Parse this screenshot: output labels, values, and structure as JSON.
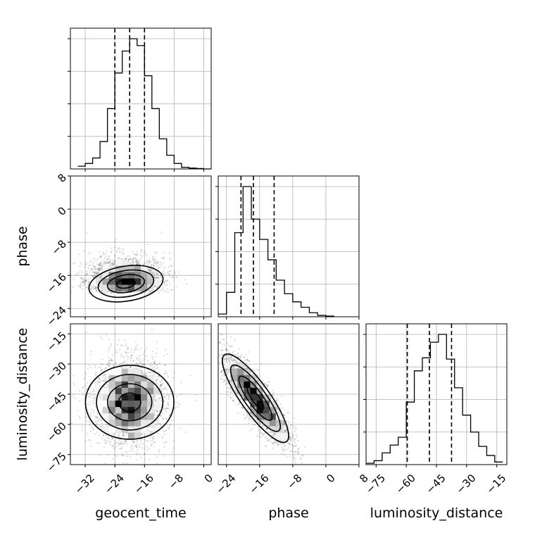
{
  "chart_data": {
    "type": "corner",
    "parameters": [
      "geocent_time",
      "phase",
      "luminosity_distance"
    ],
    "axis_labels": {
      "x": [
        "geocent_time",
        "phase",
        "luminosity_distance"
      ],
      "y": [
        "phase",
        "luminosity_distance"
      ]
    },
    "ranges": {
      "geocent_time": [
        -36,
        2
      ],
      "phase": [
        -26,
        8
      ],
      "luminosity_distance": [
        -80,
        -10
      ]
    },
    "ticks": {
      "geocent_time": [
        -32,
        -24,
        -16,
        -8,
        0
      ],
      "phase": [
        -24,
        -16,
        -8,
        0,
        8
      ],
      "luminosity_distance": [
        -75,
        -60,
        -45,
        -30,
        -15
      ]
    },
    "tick_labels": {
      "geocent_time": [
        "−32",
        "−24",
        "−16",
        "−8",
        "0"
      ],
      "phase": [
        "−24",
        "−16",
        "−8",
        "0",
        "8"
      ],
      "luminosity_distance": [
        "−75",
        "−60",
        "−45",
        "−30",
        "−15"
      ]
    },
    "y_tick_labels": {
      "phase": [
        "8",
        "0",
        "−8",
        "−16",
        "−24"
      ],
      "luminosity_distance": [
        "−15",
        "−30",
        "−45",
        "−60",
        "−75"
      ]
    },
    "quantiles": {
      "geocent_time": [
        -24,
        -20,
        -16
      ],
      "phase": [
        -20.5,
        -17.5,
        -12.5
      ],
      "luminosity_distance": [
        -59.5,
        -48.5,
        -37.5
      ]
    },
    "histograms": {
      "geocent_time": {
        "bin_edges": [
          -34,
          -32,
          -30,
          -28,
          -26,
          -24,
          -22,
          -20,
          -18,
          -16,
          -14,
          -12,
          -10,
          -8,
          -6,
          -4,
          -2,
          0,
          2
        ],
        "counts": [
          2,
          4,
          8,
          20,
          44,
          70,
          86,
          95,
          90,
          68,
          44,
          22,
          10,
          4,
          1.2,
          0.6,
          0.3,
          0
        ]
      },
      "phase": {
        "bin_edges": [
          -26,
          -24,
          -22,
          -20,
          -18,
          -16,
          -14,
          -12,
          -10,
          -8,
          -6,
          -4,
          -2,
          0,
          2
        ],
        "counts": [
          2,
          18,
          62,
          96,
          72,
          57,
          42,
          27,
          17,
          11,
          7,
          3,
          1,
          0.5
        ]
      },
      "luminosity_distance": {
        "bin_edges": [
          -80,
          -76,
          -72,
          -68,
          -64,
          -60,
          -56,
          -52,
          -48,
          -44,
          -40,
          -36,
          -32,
          -28,
          -24,
          -20,
          -16,
          -12
        ],
        "counts": [
          1,
          3,
          9,
          15,
          21,
          48,
          72,
          82,
          94,
          100,
          81,
          59,
          38,
          25,
          14,
          7,
          2
        ]
      }
    },
    "joint": {
      "phase_vs_geocent_time": {
        "mean": [
          -21,
          -16.5
        ],
        "sd": [
          5,
          4
        ],
        "rho": 0.25,
        "skew": "phase has a long tail toward positive values"
      },
      "luminosity_distance_vs_geocent_time": {
        "mean": [
          -20,
          -49
        ],
        "sd": [
          5,
          11
        ],
        "rho": 0.0
      },
      "luminosity_distance_vs_phase": {
        "mean": [
          -17,
          -47
        ],
        "sd": [
          4,
          11
        ],
        "rho": -0.85
      }
    },
    "contour_levels_sigma": [
      0.5,
      1.0,
      1.5,
      2.0
    ],
    "grid": true
  }
}
